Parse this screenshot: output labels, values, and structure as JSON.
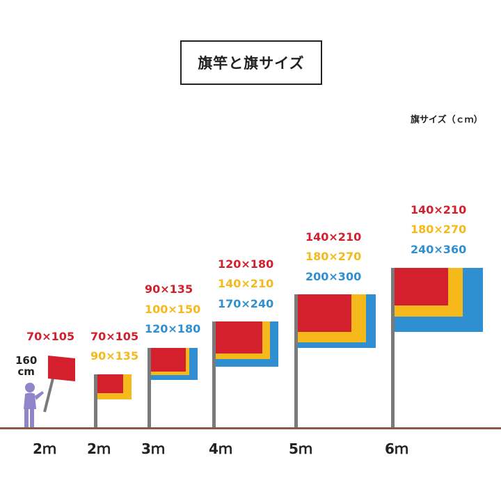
{
  "title": "旗竿と旗サイズ",
  "unit_label": "旗サイズ（ｃｍ）",
  "person": {
    "height_value": "160",
    "height_unit": "cm"
  },
  "colors": {
    "red": "#d3202c",
    "yellow": "#f5b91c",
    "blue": "#2f8fd0",
    "pole": "#7a7a7a",
    "ground": "#8a5a44",
    "person": "#8f86c9"
  },
  "groups": [
    {
      "pole_height": "2ｍ",
      "sizes": [
        "70×105"
      ]
    },
    {
      "pole_height": "2ｍ",
      "sizes": [
        "70×105",
        "90×135"
      ]
    },
    {
      "pole_height": "3ｍ",
      "sizes": [
        "90×135",
        "100×150",
        "120×180"
      ]
    },
    {
      "pole_height": "4ｍ",
      "sizes": [
        "120×180",
        "140×210",
        "170×240"
      ]
    },
    {
      "pole_height": "5ｍ",
      "sizes": [
        "140×210",
        "180×270",
        "200×300"
      ]
    },
    {
      "pole_height": "6ｍ",
      "sizes": [
        "140×210",
        "180×270",
        "240×360"
      ]
    }
  ]
}
